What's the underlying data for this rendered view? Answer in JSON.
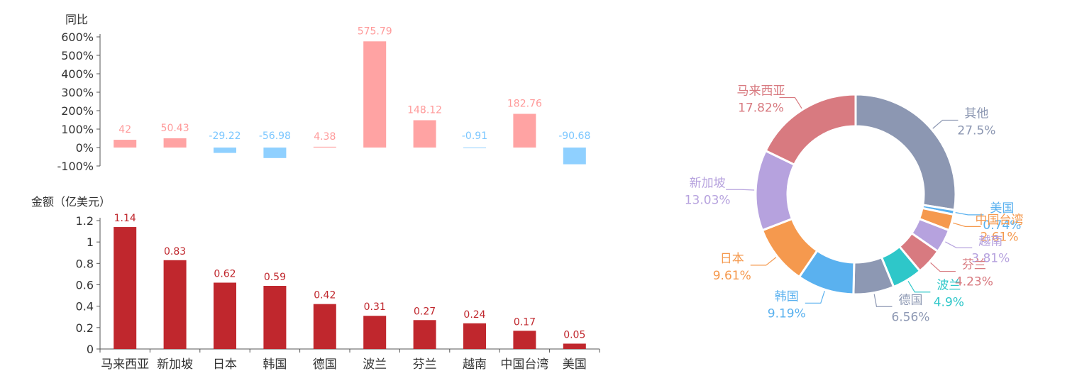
{
  "colors": {
    "pos_bar": "#ffa3a3",
    "neg_bar": "#8fd0ff",
    "pos_label": "#ff9a9a",
    "neg_label": "#7cc7ff",
    "amount_bar": "#c0272d",
    "amount_label": "#c0272d",
    "axis": "#555555",
    "text": "#333333"
  },
  "chart_data": [
    {
      "type": "bar",
      "ylabel": "同比",
      "ylim": [
        -100,
        600
      ],
      "y_ticks": [
        "600%",
        "500%",
        "400%",
        "300%",
        "200%",
        "100%",
        "0%",
        "-100%"
      ],
      "categories": [
        "马来西亚",
        "新加坡",
        "日本",
        "韩国",
        "德国",
        "波兰",
        "芬兰",
        "越南",
        "中国台湾",
        "美国"
      ],
      "values": [
        42,
        50.43,
        -29.22,
        -56.98,
        4.38,
        575.79,
        148.12,
        -0.91,
        182.76,
        -90.68
      ],
      "value_labels": [
        "42",
        "50.43",
        "-29.22",
        "-56.98",
        "4.38",
        "575.79",
        "148.12",
        "-0.91",
        "182.76",
        "-90.68"
      ]
    },
    {
      "type": "bar",
      "ylabel": "金额（亿美元）",
      "ylim": [
        0,
        1.2
      ],
      "y_ticks": [
        "1.2",
        "1",
        "0.8",
        "0.6",
        "0.4",
        "0.2",
        "0"
      ],
      "categories": [
        "马来西亚",
        "新加坡",
        "日本",
        "韩国",
        "德国",
        "波兰",
        "芬兰",
        "越南",
        "中国台湾",
        "美国"
      ],
      "values": [
        1.14,
        0.83,
        0.62,
        0.59,
        0.42,
        0.31,
        0.27,
        0.24,
        0.17,
        0.05
      ],
      "value_labels": [
        "1.14",
        "0.83",
        "0.62",
        "0.59",
        "0.42",
        "0.31",
        "0.27",
        "0.24",
        "0.17",
        "0.05"
      ]
    },
    {
      "type": "pie",
      "variant": "donut",
      "slices": [
        {
          "name": "其他",
          "value": 27.5,
          "label": "27.5%",
          "color": "#8c97b2"
        },
        {
          "name": "美国",
          "value": 0.74,
          "label": "0.74%",
          "color": "#5ab1ef"
        },
        {
          "name": "中国台湾",
          "value": 2.61,
          "label": "2.61%",
          "color": "#f5994e"
        },
        {
          "name": "越南",
          "value": 3.81,
          "label": "3.81%",
          "color": "#b6a2de"
        },
        {
          "name": "芬兰",
          "value": 4.23,
          "label": "4.23%",
          "color": "#d87a80"
        },
        {
          "name": "波兰",
          "value": 4.9,
          "label": "4.9%",
          "color": "#2ec7c9"
        },
        {
          "name": "德国",
          "value": 6.56,
          "label": "6.56%",
          "color": "#8d98b3"
        },
        {
          "name": "韩国",
          "value": 9.19,
          "label": "9.19%",
          "color": "#5ab1ef"
        },
        {
          "name": "日本",
          "value": 9.61,
          "label": "9.61%",
          "color": "#f5994e"
        },
        {
          "name": "新加坡",
          "value": 13.03,
          "label": "13.03%",
          "color": "#b6a2de"
        },
        {
          "name": "马来西亚",
          "value": 17.82,
          "label": "17.82%",
          "color": "#d87a80"
        }
      ]
    }
  ]
}
